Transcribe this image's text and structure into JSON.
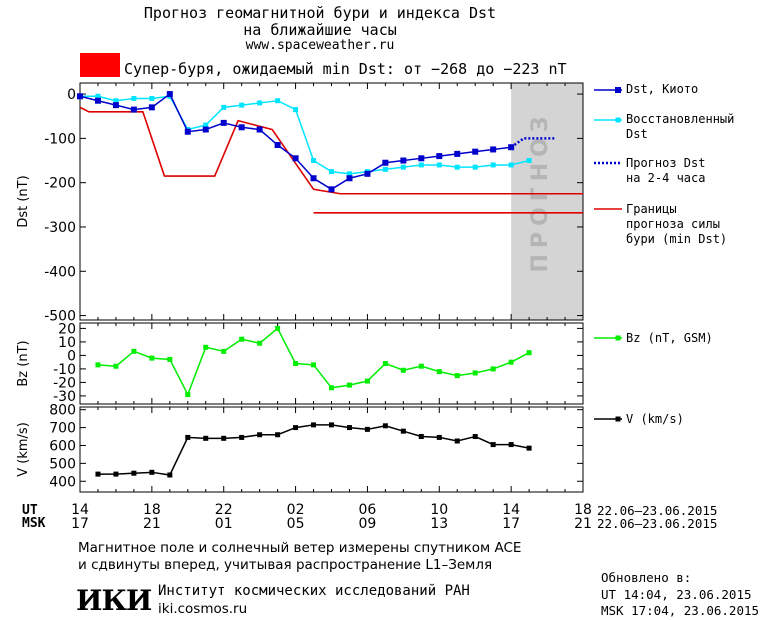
{
  "header": {
    "title_line1": "Прогноз геомагнитной бури и индекса Dst",
    "title_line2": "на ближайшие часы",
    "website": "www.spaceweather.ru",
    "storm_label": "Супер-буря, ожидаемый min Dst: от −268 до −223 nT",
    "storm_color": "#ff0000"
  },
  "legend": {
    "dst_kyoto": "Dst, Киото",
    "restored_1": "Восстановленный",
    "restored_2": "Dst",
    "forecast_1": "Прогноз Dst",
    "forecast_2": "на 2-4 часа",
    "bounds_1": "Границы",
    "bounds_2": "прогноза силы",
    "bounds_3": "бури (min Dst)",
    "bz": "Bz (nT, GSM)",
    "v": "V (km/s)"
  },
  "forecast_band_label": "ПРОГНОЗ",
  "time_axis": {
    "ut_label": "UT",
    "msk_label": "MSK",
    "ut_ticks": [
      "14",
      "18",
      "22",
      "02",
      "06",
      "10",
      "14",
      "18"
    ],
    "msk_ticks": [
      "17",
      "21",
      "01",
      "05",
      "09",
      "13",
      "17",
      "21"
    ],
    "date_range_ut": "22.06–23.06.2015",
    "date_range_msk": "22.06–23.06.2015"
  },
  "footer": {
    "note_line1": "Магнитное поле и солнечный ветер измерены спутником ACE",
    "note_line2": "и сдвинуты вперед, учитывая распространение L1–Земля",
    "institute_logo": "ИКИ",
    "institute_name": "Институт космических исследований РАН",
    "institute_site": "iki.cosmos.ru",
    "updated_label": "Обновлено в:",
    "updated_ut": "UT  14:04, 23.06.2015",
    "updated_msk": "MSK 17:04, 23.06.2015"
  },
  "colors": {
    "dst": "#0000cc",
    "restored": "#00e5ff",
    "forecast": "#0000cc",
    "bounds": "#dd0000",
    "bz": "#00ee00",
    "v": "#000000",
    "band": "#d4d4d4"
  },
  "chart_data": [
    {
      "type": "line",
      "ylabel": "Dst (nT)",
      "ylim": [
        -510,
        25
      ],
      "yticks": [
        0,
        -100,
        -200,
        -300,
        -400,
        -500
      ],
      "x_hours_range": [
        14,
        42
      ],
      "forecast_band_hours": [
        38,
        42
      ],
      "series": [
        {
          "name": "Dst, Киото",
          "x": [
            14,
            15,
            16,
            17,
            18,
            19,
            20,
            21,
            22,
            23,
            24,
            25,
            26,
            27,
            28,
            29,
            30,
            31,
            32,
            33,
            34,
            35,
            36,
            37,
            38
          ],
          "values": [
            -5,
            -15,
            -25,
            -35,
            -30,
            0,
            -85,
            -80,
            -65,
            -75,
            -80,
            -115,
            -145,
            -190,
            -215,
            -190,
            -180,
            -155,
            -150,
            -145,
            -140,
            -135,
            -130,
            -125,
            -120
          ]
        },
        {
          "name": "Восстановленный Dst",
          "x": [
            14,
            15,
            16,
            17,
            18,
            19,
            20,
            21,
            22,
            23,
            24,
            25,
            26,
            27,
            28,
            29,
            30,
            31,
            32,
            33,
            34,
            35,
            36,
            37,
            38,
            39
          ],
          "values": [
            -5,
            -5,
            -15,
            -10,
            -10,
            -5,
            -80,
            -70,
            -30,
            -25,
            -20,
            -15,
            -35,
            -150,
            -175,
            -180,
            -175,
            -170,
            -165,
            -160,
            -160,
            -165,
            -165,
            -160,
            -160,
            -150
          ]
        },
        {
          "name": "Прогноз Dst на 2-4 часа",
          "x": [
            38,
            38.7,
            39.5,
            40.4
          ],
          "values": [
            -120,
            -100,
            -100,
            -100
          ]
        },
        {
          "name": "Границы прогноза силы бури (min Dst)",
          "x": [
            14,
            14.5,
            17.5,
            18.7,
            20,
            21.5,
            22.8,
            24.7,
            27,
            28.5,
            42
          ],
          "values": [
            -30,
            -40,
            -40,
            -185,
            -185,
            -185,
            -60,
            -80,
            -215,
            -225,
            -225
          ]
        },
        {
          "name": "Границы прогноза силы бури (min Dst) 2",
          "x": [
            27,
            42
          ],
          "values": [
            -268,
            -268
          ]
        }
      ]
    },
    {
      "type": "line",
      "ylabel": "Bz (nT)",
      "ylim": [
        -36,
        24
      ],
      "yticks": [
        20,
        10,
        0,
        -10,
        -20,
        -30
      ],
      "series": [
        {
          "name": "Bz (nT, GSM)",
          "x": [
            15,
            16,
            17,
            18,
            19,
            20,
            21,
            22,
            23,
            24,
            25,
            26,
            27,
            28,
            29,
            30,
            31,
            32,
            33,
            34,
            35,
            36,
            37,
            38,
            39
          ],
          "values": [
            -7,
            -8,
            3,
            -2,
            -3,
            -29,
            6,
            3,
            12,
            9,
            20,
            -6,
            -7,
            -24,
            -22,
            -19,
            -6,
            -11,
            -8,
            -12,
            -15,
            -13,
            -10,
            -5,
            2
          ]
        }
      ]
    },
    {
      "type": "line",
      "ylabel": "V (km/s)",
      "ylim": [
        340,
        815
      ],
      "yticks": [
        800,
        700,
        600,
        500,
        400
      ],
      "series": [
        {
          "name": "V (km/s)",
          "x": [
            15,
            16,
            17,
            18,
            19,
            20,
            21,
            22,
            23,
            24,
            25,
            26,
            27,
            28,
            29,
            30,
            31,
            32,
            33,
            34,
            35,
            36,
            37,
            38,
            39
          ],
          "values": [
            440,
            440,
            445,
            450,
            435,
            645,
            640,
            640,
            645,
            660,
            660,
            700,
            715,
            715,
            700,
            690,
            710,
            680,
            650,
            645,
            625,
            650,
            605,
            605,
            585
          ]
        }
      ]
    }
  ]
}
